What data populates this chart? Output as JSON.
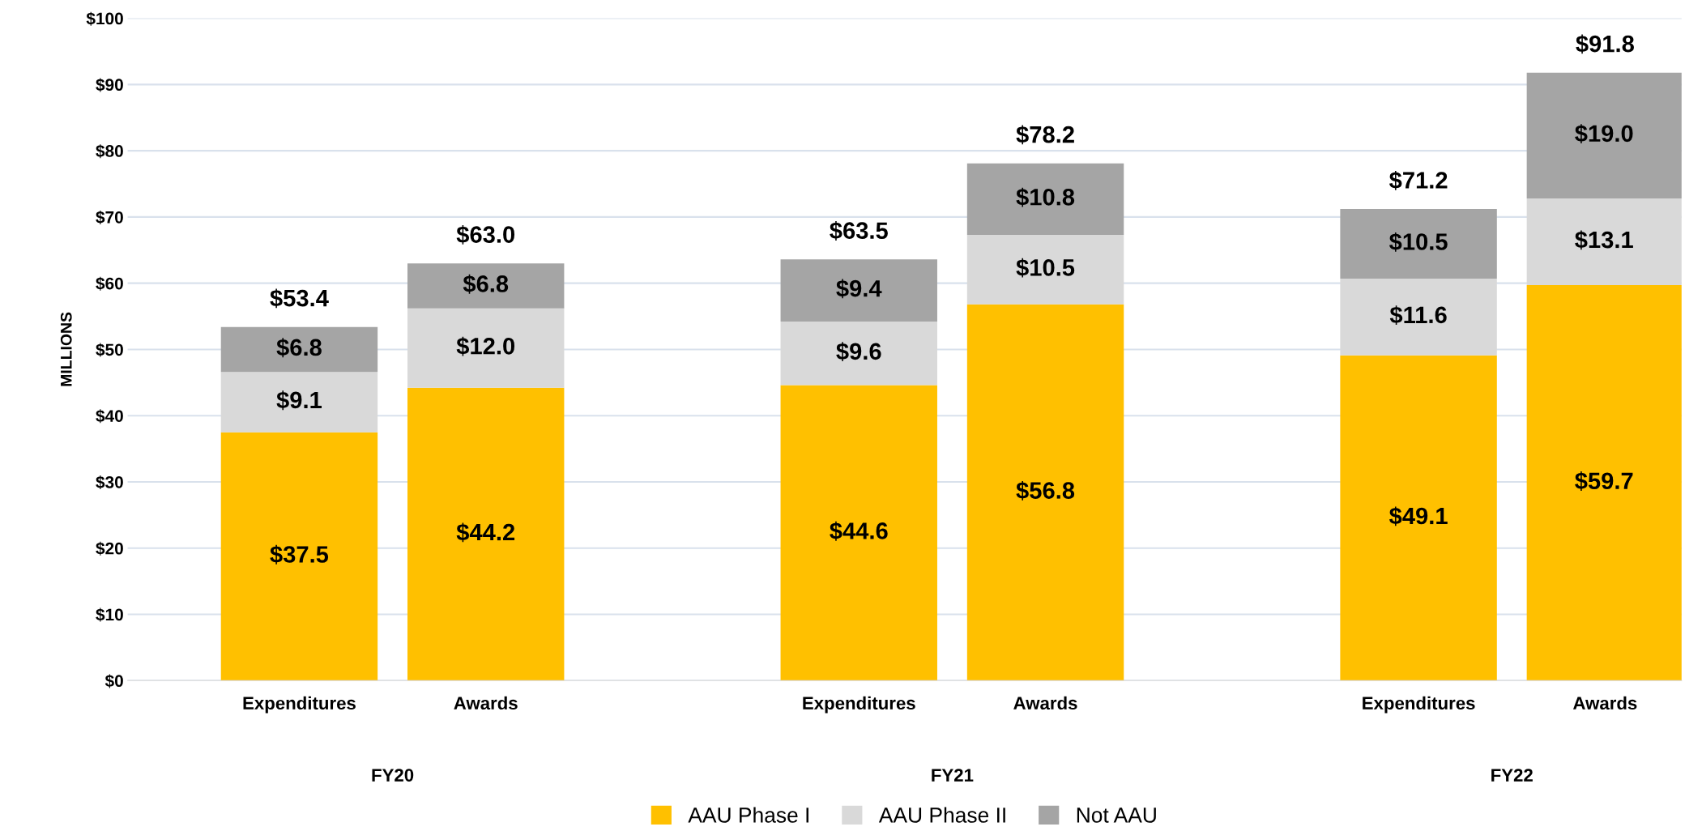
{
  "chart_data": {
    "type": "bar",
    "stacked": true,
    "ylabel": "MILLIONS",
    "categories": [
      "Expenditures",
      "Awards",
      null,
      "Expenditures",
      "Awards",
      null,
      "Expenditures",
      "Awards"
    ],
    "series": [
      {
        "name": "AAU Phase I",
        "color": "#ffc000",
        "values": [
          37.5,
          44.2,
          null,
          44.6,
          56.8,
          null,
          49.1,
          59.7
        ]
      },
      {
        "name": "AAU Phase II",
        "color": "#d9d9d9",
        "values": [
          9.1,
          12.0,
          null,
          9.6,
          10.5,
          null,
          11.6,
          13.1
        ]
      },
      {
        "name": "Not AAU",
        "color": "#a5a5a5",
        "values": [
          6.8,
          6.8,
          null,
          9.4,
          10.8,
          null,
          10.5,
          19.0
        ]
      }
    ],
    "value_labels": [
      [
        "$37.5",
        "$44.2",
        null,
        "$44.6",
        "$56.8",
        null,
        "$49.1",
        "$59.7"
      ],
      [
        "$9.1",
        "$12.0",
        null,
        "$9.6",
        "$10.5",
        null,
        "$11.6",
        "$13.1"
      ],
      [
        "$6.8",
        "$6.8",
        null,
        "$9.4",
        "$10.8",
        null,
        "$10.5",
        "$19.0"
      ]
    ],
    "totals": [
      "$53.4",
      "$63.0",
      null,
      "$63.5",
      "$78.2",
      null,
      "$71.2",
      "$91.8"
    ],
    "annotations": [
      "FY20",
      "FY21",
      "FY22"
    ],
    "ylim": [
      0,
      100
    ],
    "yticks": [
      {
        "value": 0,
        "label": "$0"
      },
      {
        "value": 10,
        "label": "$10"
      },
      {
        "value": 20,
        "label": "$20"
      },
      {
        "value": 30,
        "label": "$30"
      },
      {
        "value": 40,
        "label": "$40"
      },
      {
        "value": 50,
        "label": "$50"
      },
      {
        "value": 60,
        "label": "$60"
      },
      {
        "value": 70,
        "label": "$70"
      },
      {
        "value": 80,
        "label": "$80"
      },
      {
        "value": 90,
        "label": "$90"
      },
      {
        "value": 100,
        "label": "$100"
      }
    ],
    "grid": "y",
    "legend": "bottom"
  }
}
